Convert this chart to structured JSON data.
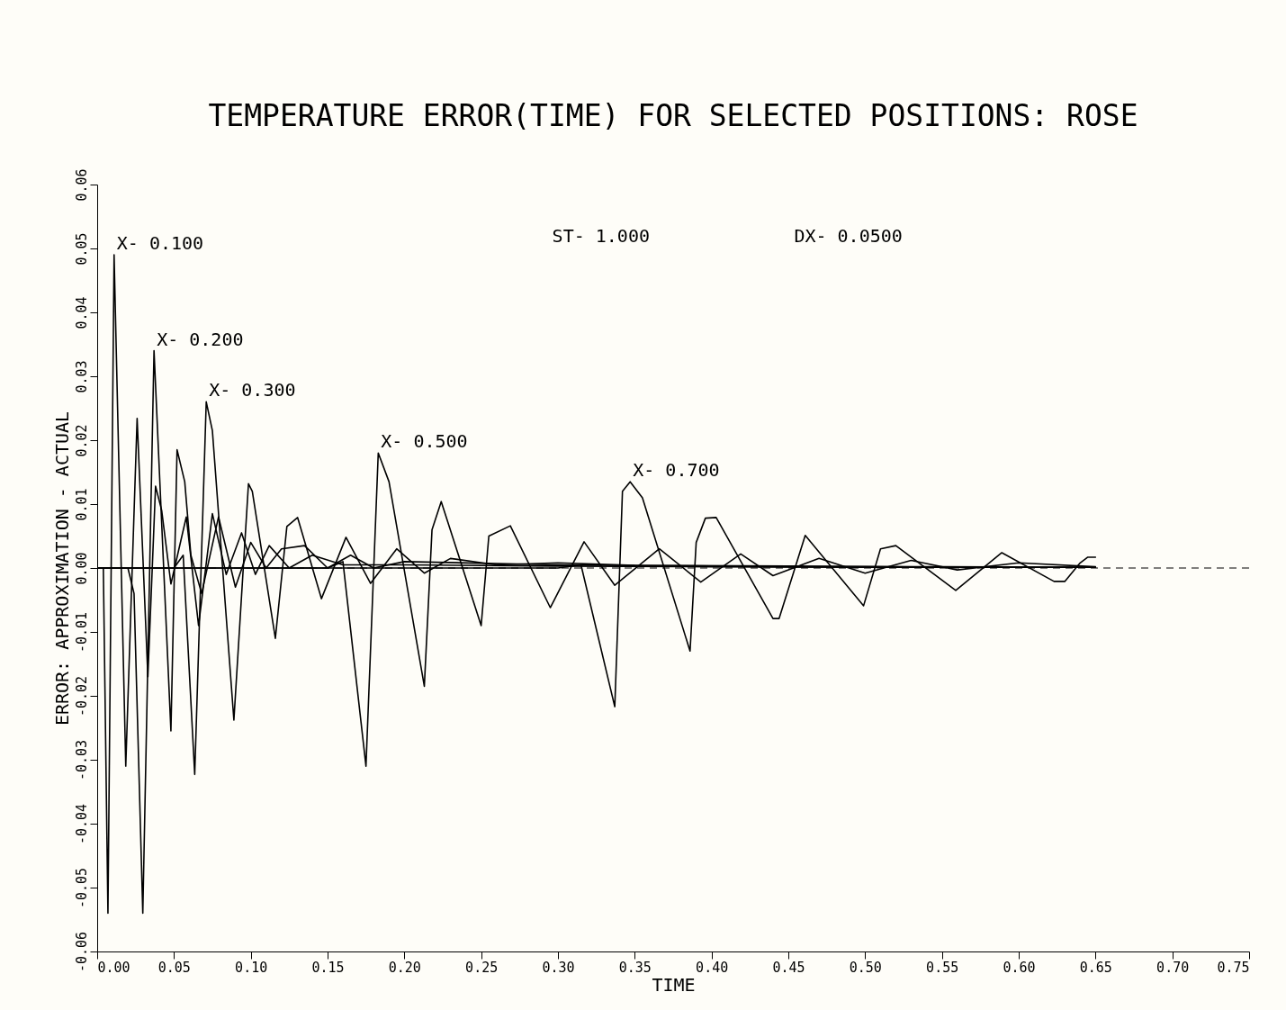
{
  "chart_data": {
    "type": "line",
    "title": "TEMPERATURE ERROR(TIME) FOR SELECTED POSITIONS: ROSE",
    "xlabel": "TIME",
    "ylabel": "ERROR: APPROXIMATION - ACTUAL",
    "annotations": [
      "ST- 1.000",
      "DX- 0.0500"
    ],
    "xlim": [
      0,
      0.75
    ],
    "xticks": [
      {
        "value": 0,
        "label": "0.00"
      },
      0.05,
      {
        "value": 0.1,
        "label": "0.10"
      },
      0.15,
      {
        "value": 0.2,
        "label": "0.20"
      },
      0.25,
      {
        "value": 0.3,
        "label": "0.30"
      },
      0.35,
      {
        "value": 0.4,
        "label": "0.40"
      },
      0.45,
      {
        "value": 0.5,
        "label": "0.50"
      },
      0.55,
      {
        "value": 0.6,
        "label": "0.60"
      },
      0.65,
      {
        "value": 0.7,
        "label": "0.70"
      },
      0.75
    ],
    "ylim": [
      -0.06,
      0.06
    ],
    "yticks": [
      -0.06,
      -0.05,
      -0.04,
      -0.03,
      -0.02,
      -0.01,
      {
        "value": 0,
        "label": "0.00"
      },
      0.01,
      0.02,
      0.03,
      0.04,
      0.05,
      0.06
    ],
    "grid": false,
    "legend": false,
    "marker": "none",
    "line_style": "solid",
    "ref_lines": [
      {
        "axis": "y",
        "value": 0,
        "line_style": "dashed",
        "color": "#000000"
      }
    ],
    "series": [
      {
        "name": "X- 0.100",
        "color": "#000000",
        "x": [
          0,
          0.004,
          0.007,
          0.011,
          0.0186,
          0.026,
          0.033,
          0.038,
          0.042,
          0.048,
          0.058,
          0.066,
          0.075,
          0.084,
          0.094,
          0.103,
          0.112,
          0.125,
          0.14,
          0.16,
          0.2,
          0.3,
          0.4,
          0.5,
          0.65
        ],
        "values": [
          0,
          0,
          -0.054,
          0.049,
          -0.031,
          0.0234,
          -0.017,
          0.0128,
          0.009,
          -0.0025,
          0.008,
          -0.009,
          0.0085,
          -0.001,
          0.0055,
          -0.001,
          0.0035,
          0,
          0.002,
          0.0005,
          0.0005,
          0.0003,
          0.0002,
          0.0001,
          0.0001
        ]
      },
      {
        "name": "X- 0.200",
        "color": "#000000",
        "x": [
          0,
          0.02,
          0.024,
          0.0297,
          0.037,
          0.048,
          0.052,
          0.057,
          0.061,
          0.068,
          0.079,
          0.09,
          0.1,
          0.11,
          0.12,
          0.135,
          0.15,
          0.165,
          0.18,
          0.2,
          0.3,
          0.45,
          0.65
        ],
        "values": [
          0,
          0,
          -0.004,
          -0.054,
          0.034,
          -0.0255,
          0.0185,
          0.0135,
          0.002,
          -0.004,
          0.008,
          -0.003,
          0.004,
          0,
          0.003,
          0.0035,
          0,
          0.002,
          0,
          0.001,
          0.0005,
          0.0002,
          0.0001
        ]
      },
      {
        "name": "X- 0.300",
        "color": "#000000",
        "x": [
          0,
          0.05,
          0.056,
          0.0635,
          0.071,
          0.075,
          0.089,
          0.0985,
          0.101,
          0.116,
          0.1235,
          0.1305,
          0.146,
          0.162,
          0.178,
          0.195,
          0.213,
          0.23,
          0.26,
          0.3,
          0.35,
          0.45,
          0.55,
          0.65
        ],
        "values": [
          0,
          0,
          0.002,
          -0.0323,
          0.026,
          0.0215,
          -0.0238,
          0.0132,
          0.012,
          -0.011,
          0.0065,
          0.0079,
          -0.0048,
          0.0048,
          -0.0024,
          0.003,
          -0.0008,
          0.0015,
          0.0005,
          0.0008,
          0.0004,
          0.0003,
          0.0002,
          0.0001
        ]
      },
      {
        "name": "X- 0.500",
        "color": "#000000",
        "x": [
          0,
          0.15,
          0.16,
          0.175,
          0.183,
          0.19,
          0.213,
          0.218,
          0.224,
          0.25,
          0.255,
          0.269,
          0.295,
          0.317,
          0.337,
          0.366,
          0.393,
          0.419,
          0.44,
          0.47,
          0.5,
          0.53,
          0.56,
          0.6,
          0.65
        ],
        "values": [
          0,
          0,
          0.001,
          -0.031,
          0.018,
          0.0135,
          -0.0185,
          0.006,
          0.0104,
          -0.009,
          0.005,
          0.0066,
          -0.0062,
          0.0041,
          -0.0027,
          0.003,
          -0.0022,
          0.0022,
          -0.0012,
          0.0015,
          -0.0008,
          0.0012,
          -0.0003,
          0.0008,
          0.0002
        ]
      },
      {
        "name": "X- 0.700",
        "color": "#000000",
        "x": [
          0,
          0.3,
          0.315,
          0.337,
          0.342,
          0.347,
          0.355,
          0.386,
          0.39,
          0.396,
          0.403,
          0.44,
          0.444,
          0.461,
          0.499,
          0.51,
          0.52,
          0.559,
          0.589,
          0.623,
          0.63,
          0.64,
          0.645,
          0.65
        ],
        "values": [
          0,
          0,
          0.0005,
          -0.0217,
          0.012,
          0.0135,
          0.011,
          -0.013,
          0.004,
          0.0078,
          0.0079,
          -0.0079,
          -0.0079,
          0.0051,
          -0.0059,
          0.003,
          0.0035,
          -0.0035,
          0.0024,
          -0.0021,
          -0.0021,
          0.0008,
          0.0017,
          0.0017
        ]
      }
    ]
  }
}
